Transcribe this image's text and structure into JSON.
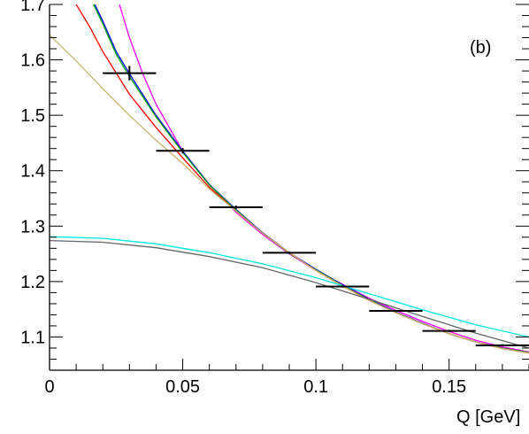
{
  "chart_data": {
    "type": "scatter",
    "panel_label": "(b)",
    "xlabel": "Q [GeV]",
    "ylabel": "",
    "xlim": [
      0,
      0.18
    ],
    "ylim": [
      1.04,
      1.7
    ],
    "grid": false,
    "legend": "none",
    "x_ticks": [
      {
        "value": 0,
        "label": "0"
      },
      {
        "value": 0.05,
        "label": "0.05"
      },
      {
        "value": 0.1,
        "label": "0.1"
      },
      {
        "value": 0.15,
        "label": "0.15"
      }
    ],
    "y_ticks": [
      {
        "value": 1.1,
        "label": "1.1"
      },
      {
        "value": 1.2,
        "label": "1.2"
      },
      {
        "value": 1.3,
        "label": "1.3"
      },
      {
        "value": 1.4,
        "label": "1.4"
      },
      {
        "value": 1.5,
        "label": "1.5"
      },
      {
        "value": 1.6,
        "label": "1.6"
      },
      {
        "value": 1.7,
        "label": "1.7"
      }
    ],
    "data_points": [
      {
        "x": 0.03,
        "y": 1.576,
        "xerr": 0.01,
        "yerr": 0.013
      },
      {
        "x": 0.05,
        "y": 1.436,
        "xerr": 0.01,
        "yerr": 0.005
      },
      {
        "x": 0.07,
        "y": 1.334,
        "xerr": 0.01,
        "yerr": 0.003
      },
      {
        "x": 0.09,
        "y": 1.252,
        "xerr": 0.01,
        "yerr": 0.002
      },
      {
        "x": 0.11,
        "y": 1.191,
        "xerr": 0.01,
        "yerr": 0.002
      },
      {
        "x": 0.13,
        "y": 1.147,
        "xerr": 0.01,
        "yerr": 0.002
      },
      {
        "x": 0.15,
        "y": 1.111,
        "xerr": 0.01,
        "yerr": 0.002
      },
      {
        "x": 0.17,
        "y": 1.085,
        "xerr": 0.01,
        "yerr": 0.002
      }
    ],
    "series": [
      {
        "color": "#ff00ff",
        "points": [
          [
            0.025,
            1.72
          ],
          [
            0.03,
            1.64
          ],
          [
            0.035,
            1.575
          ],
          [
            0.04,
            1.52
          ],
          [
            0.05,
            1.435
          ],
          [
            0.06,
            1.375
          ],
          [
            0.07,
            1.325
          ],
          [
            0.08,
            1.285
          ],
          [
            0.09,
            1.25
          ],
          [
            0.1,
            1.22
          ],
          [
            0.11,
            1.195
          ],
          [
            0.12,
            1.17
          ],
          [
            0.13,
            1.148
          ],
          [
            0.14,
            1.128
          ],
          [
            0.15,
            1.11
          ],
          [
            0.16,
            1.094
          ],
          [
            0.17,
            1.082
          ],
          [
            0.18,
            1.073
          ]
        ]
      },
      {
        "color": "#0000ff",
        "points": [
          [
            0.015,
            1.72
          ],
          [
            0.02,
            1.67
          ],
          [
            0.025,
            1.615
          ],
          [
            0.03,
            1.575
          ],
          [
            0.04,
            1.5
          ],
          [
            0.05,
            1.435
          ],
          [
            0.06,
            1.375
          ],
          [
            0.07,
            1.33
          ],
          [
            0.08,
            1.288
          ],
          [
            0.09,
            1.252
          ],
          [
            0.1,
            1.222
          ],
          [
            0.11,
            1.194
          ],
          [
            0.12,
            1.168
          ],
          [
            0.13,
            1.145
          ],
          [
            0.14,
            1.125
          ],
          [
            0.15,
            1.106
          ],
          [
            0.16,
            1.091
          ],
          [
            0.17,
            1.08
          ],
          [
            0.18,
            1.072
          ]
        ]
      },
      {
        "color": "#00aa00",
        "points": [
          [
            0.015,
            1.715
          ],
          [
            0.02,
            1.665
          ],
          [
            0.025,
            1.61
          ],
          [
            0.03,
            1.57
          ],
          [
            0.04,
            1.497
          ],
          [
            0.05,
            1.433
          ],
          [
            0.06,
            1.374
          ],
          [
            0.07,
            1.329
          ],
          [
            0.08,
            1.287
          ],
          [
            0.09,
            1.251
          ],
          [
            0.1,
            1.221
          ],
          [
            0.11,
            1.193
          ],
          [
            0.12,
            1.167
          ],
          [
            0.13,
            1.144
          ],
          [
            0.14,
            1.124
          ],
          [
            0.15,
            1.106
          ],
          [
            0.16,
            1.091
          ],
          [
            0.17,
            1.08
          ],
          [
            0.18,
            1.072
          ]
        ]
      },
      {
        "color": "#ff0000",
        "points": [
          [
            0.008,
            1.72
          ],
          [
            0.01,
            1.7
          ],
          [
            0.015,
            1.66
          ],
          [
            0.02,
            1.615
          ],
          [
            0.03,
            1.538
          ],
          [
            0.04,
            1.478
          ],
          [
            0.05,
            1.423
          ],
          [
            0.06,
            1.37
          ],
          [
            0.07,
            1.327
          ],
          [
            0.08,
            1.287
          ],
          [
            0.09,
            1.252
          ],
          [
            0.1,
            1.22
          ],
          [
            0.11,
            1.192
          ],
          [
            0.12,
            1.166
          ],
          [
            0.13,
            1.144
          ],
          [
            0.14,
            1.124
          ],
          [
            0.15,
            1.106
          ],
          [
            0.16,
            1.091
          ],
          [
            0.17,
            1.079
          ],
          [
            0.18,
            1.071
          ]
        ]
      },
      {
        "color": "#c8b46e",
        "points": [
          [
            0,
            1.645
          ],
          [
            0.01,
            1.598
          ],
          [
            0.02,
            1.548
          ],
          [
            0.03,
            1.5
          ],
          [
            0.04,
            1.455
          ],
          [
            0.05,
            1.413
          ],
          [
            0.06,
            1.367
          ],
          [
            0.07,
            1.327
          ],
          [
            0.08,
            1.287
          ],
          [
            0.09,
            1.252
          ],
          [
            0.1,
            1.22
          ],
          [
            0.11,
            1.192
          ],
          [
            0.12,
            1.166
          ],
          [
            0.13,
            1.144
          ],
          [
            0.14,
            1.124
          ],
          [
            0.15,
            1.106
          ],
          [
            0.16,
            1.091
          ],
          [
            0.17,
            1.079
          ],
          [
            0.18,
            1.071
          ]
        ]
      },
      {
        "color": "#00e5e5",
        "points": [
          [
            0,
            1.281
          ],
          [
            0.02,
            1.278
          ],
          [
            0.04,
            1.268
          ],
          [
            0.06,
            1.252
          ],
          [
            0.08,
            1.232
          ],
          [
            0.1,
            1.207
          ],
          [
            0.12,
            1.178
          ],
          [
            0.14,
            1.149
          ],
          [
            0.16,
            1.122
          ],
          [
            0.18,
            1.1
          ]
        ]
      },
      {
        "color": "#666666",
        "points": [
          [
            0,
            1.274
          ],
          [
            0.02,
            1.271
          ],
          [
            0.04,
            1.261
          ],
          [
            0.06,
            1.245
          ],
          [
            0.08,
            1.225
          ],
          [
            0.1,
            1.198
          ],
          [
            0.12,
            1.168
          ],
          [
            0.14,
            1.137
          ],
          [
            0.16,
            1.107
          ],
          [
            0.18,
            1.08
          ]
        ]
      }
    ]
  }
}
